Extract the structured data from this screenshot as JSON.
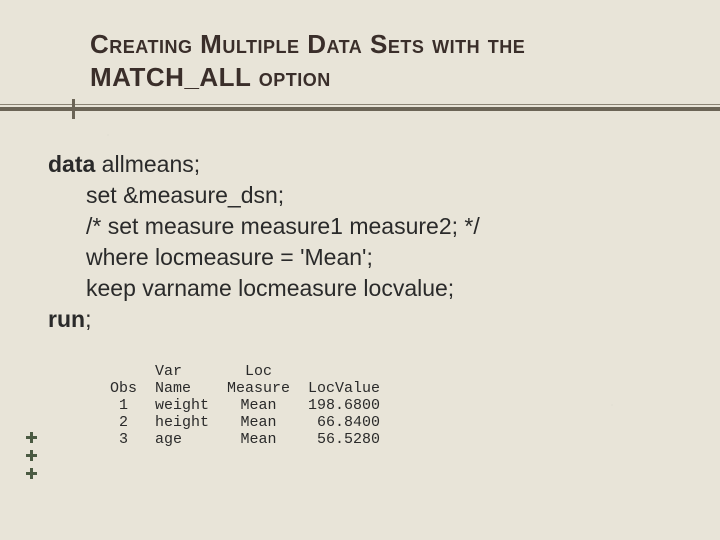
{
  "title_line1": "Creating Multiple Data Sets with the",
  "title_line2": "MATCH_ALL option",
  "code": {
    "kw_data": "data",
    "data_rest": " allmeans;",
    "set_line": "set &measure_dsn;",
    "comment_line": "/* set measure measure1 measure2; */",
    "where_line": "where locmeasure = 'Mean';",
    "keep_line": "keep varname locmeasure locvalue;",
    "kw_run": "run",
    "run_rest": ";"
  },
  "table": {
    "h_obs": "Obs",
    "h_var1": "Var",
    "h_var2": "Name",
    "h_loc1": "Loc",
    "h_loc2": "Measure",
    "h_val": "LocValue",
    "rows": [
      {
        "obs": "1",
        "var": "weight",
        "loc": "Mean",
        "val": "198.6800"
      },
      {
        "obs": "2",
        "var": "height",
        "loc": "Mean",
        "val": " 66.8400"
      },
      {
        "obs": "3",
        "var": "age",
        "loc": "Mean",
        "val": " 56.5280"
      }
    ]
  }
}
